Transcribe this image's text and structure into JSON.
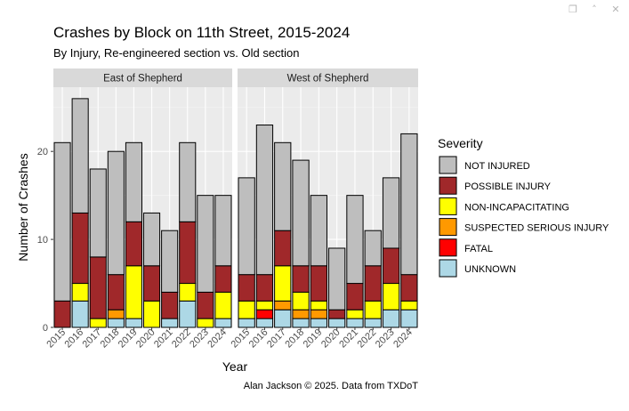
{
  "viewer": {
    "icons": [
      "copy-icon",
      "collapse-up-icon",
      "close-icon"
    ],
    "glyphs": [
      "❐",
      "˄",
      "✕"
    ]
  },
  "chart_data": {
    "type": "bar",
    "stacked": true,
    "title": "Crashes by Block on 11th Street, 2015-2024",
    "subtitle": "By Injury, Re-engineered section vs. Old section",
    "xlabel": "Year",
    "ylabel": "Number of Crashes",
    "caption": "Alan Jackson © 2025. Data from TXDoT",
    "ylim": [
      0,
      27.3
    ],
    "yticks": [
      0,
      10,
      20
    ],
    "grid": true,
    "legend": {
      "title": "Severity",
      "position": "right",
      "entries": [
        {
          "name": "NOT INJURED",
          "color": "#bebebe"
        },
        {
          "name": "POSSIBLE INJURY",
          "color": "#a0282a"
        },
        {
          "name": "NON-INCAPACITATING",
          "color": "#ffff00"
        },
        {
          "name": "SUSPECTED SERIOUS INJURY",
          "color": "#ff9900"
        },
        {
          "name": "FATAL",
          "color": "#ff0000"
        },
        {
          "name": "UNKNOWN",
          "color": "#add8e6"
        }
      ]
    },
    "categories": [
      "2015",
      "2016",
      "2017",
      "2018",
      "2019",
      "2020",
      "2021",
      "2022",
      "2023",
      "2024"
    ],
    "stack_order": [
      "UNKNOWN",
      "FATAL",
      "SUSPECTED SERIOUS INJURY",
      "NON-INCAPACITATING",
      "POSSIBLE INJURY",
      "NOT INJURED"
    ],
    "panels": [
      {
        "name": "East of Shepherd",
        "series": [
          {
            "name": "UNKNOWN",
            "values": [
              0,
              3,
              0,
              1,
              1,
              0,
              1,
              3,
              0,
              1
            ]
          },
          {
            "name": "FATAL",
            "values": [
              0,
              0,
              0,
              0,
              0,
              0,
              0,
              0,
              0,
              0
            ]
          },
          {
            "name": "SUSPECTED SERIOUS INJURY",
            "values": [
              0,
              0,
              0,
              1,
              0,
              0,
              0,
              0,
              0,
              0
            ]
          },
          {
            "name": "NON-INCAPACITATING",
            "values": [
              0,
              2,
              1,
              0,
              6,
              3,
              0,
              2,
              1,
              3
            ]
          },
          {
            "name": "POSSIBLE INJURY",
            "values": [
              3,
              8,
              7,
              4,
              5,
              4,
              3,
              7,
              3,
              3
            ]
          },
          {
            "name": "NOT INJURED",
            "values": [
              18,
              13,
              10,
              14,
              9,
              6,
              7,
              9,
              11,
              8
            ]
          }
        ]
      },
      {
        "name": "West of Shepherd",
        "series": [
          {
            "name": "UNKNOWN",
            "values": [
              1,
              1,
              2,
              1,
              1,
              1,
              1,
              1,
              2,
              2
            ]
          },
          {
            "name": "FATAL",
            "values": [
              0,
              1,
              0,
              0,
              0,
              0,
              0,
              0,
              0,
              0
            ]
          },
          {
            "name": "SUSPECTED SERIOUS INJURY",
            "values": [
              0,
              0,
              1,
              1,
              1,
              0,
              0,
              0,
              0,
              0
            ]
          },
          {
            "name": "NON-INCAPACITATING",
            "values": [
              2,
              1,
              4,
              2,
              1,
              0,
              1,
              2,
              3,
              1
            ]
          },
          {
            "name": "POSSIBLE INJURY",
            "values": [
              3,
              3,
              4,
              3,
              4,
              1,
              3,
              4,
              4,
              3
            ]
          },
          {
            "name": "NOT INJURED",
            "values": [
              11,
              17,
              10,
              12,
              8,
              7,
              10,
              4,
              8,
              16
            ]
          }
        ]
      }
    ]
  }
}
